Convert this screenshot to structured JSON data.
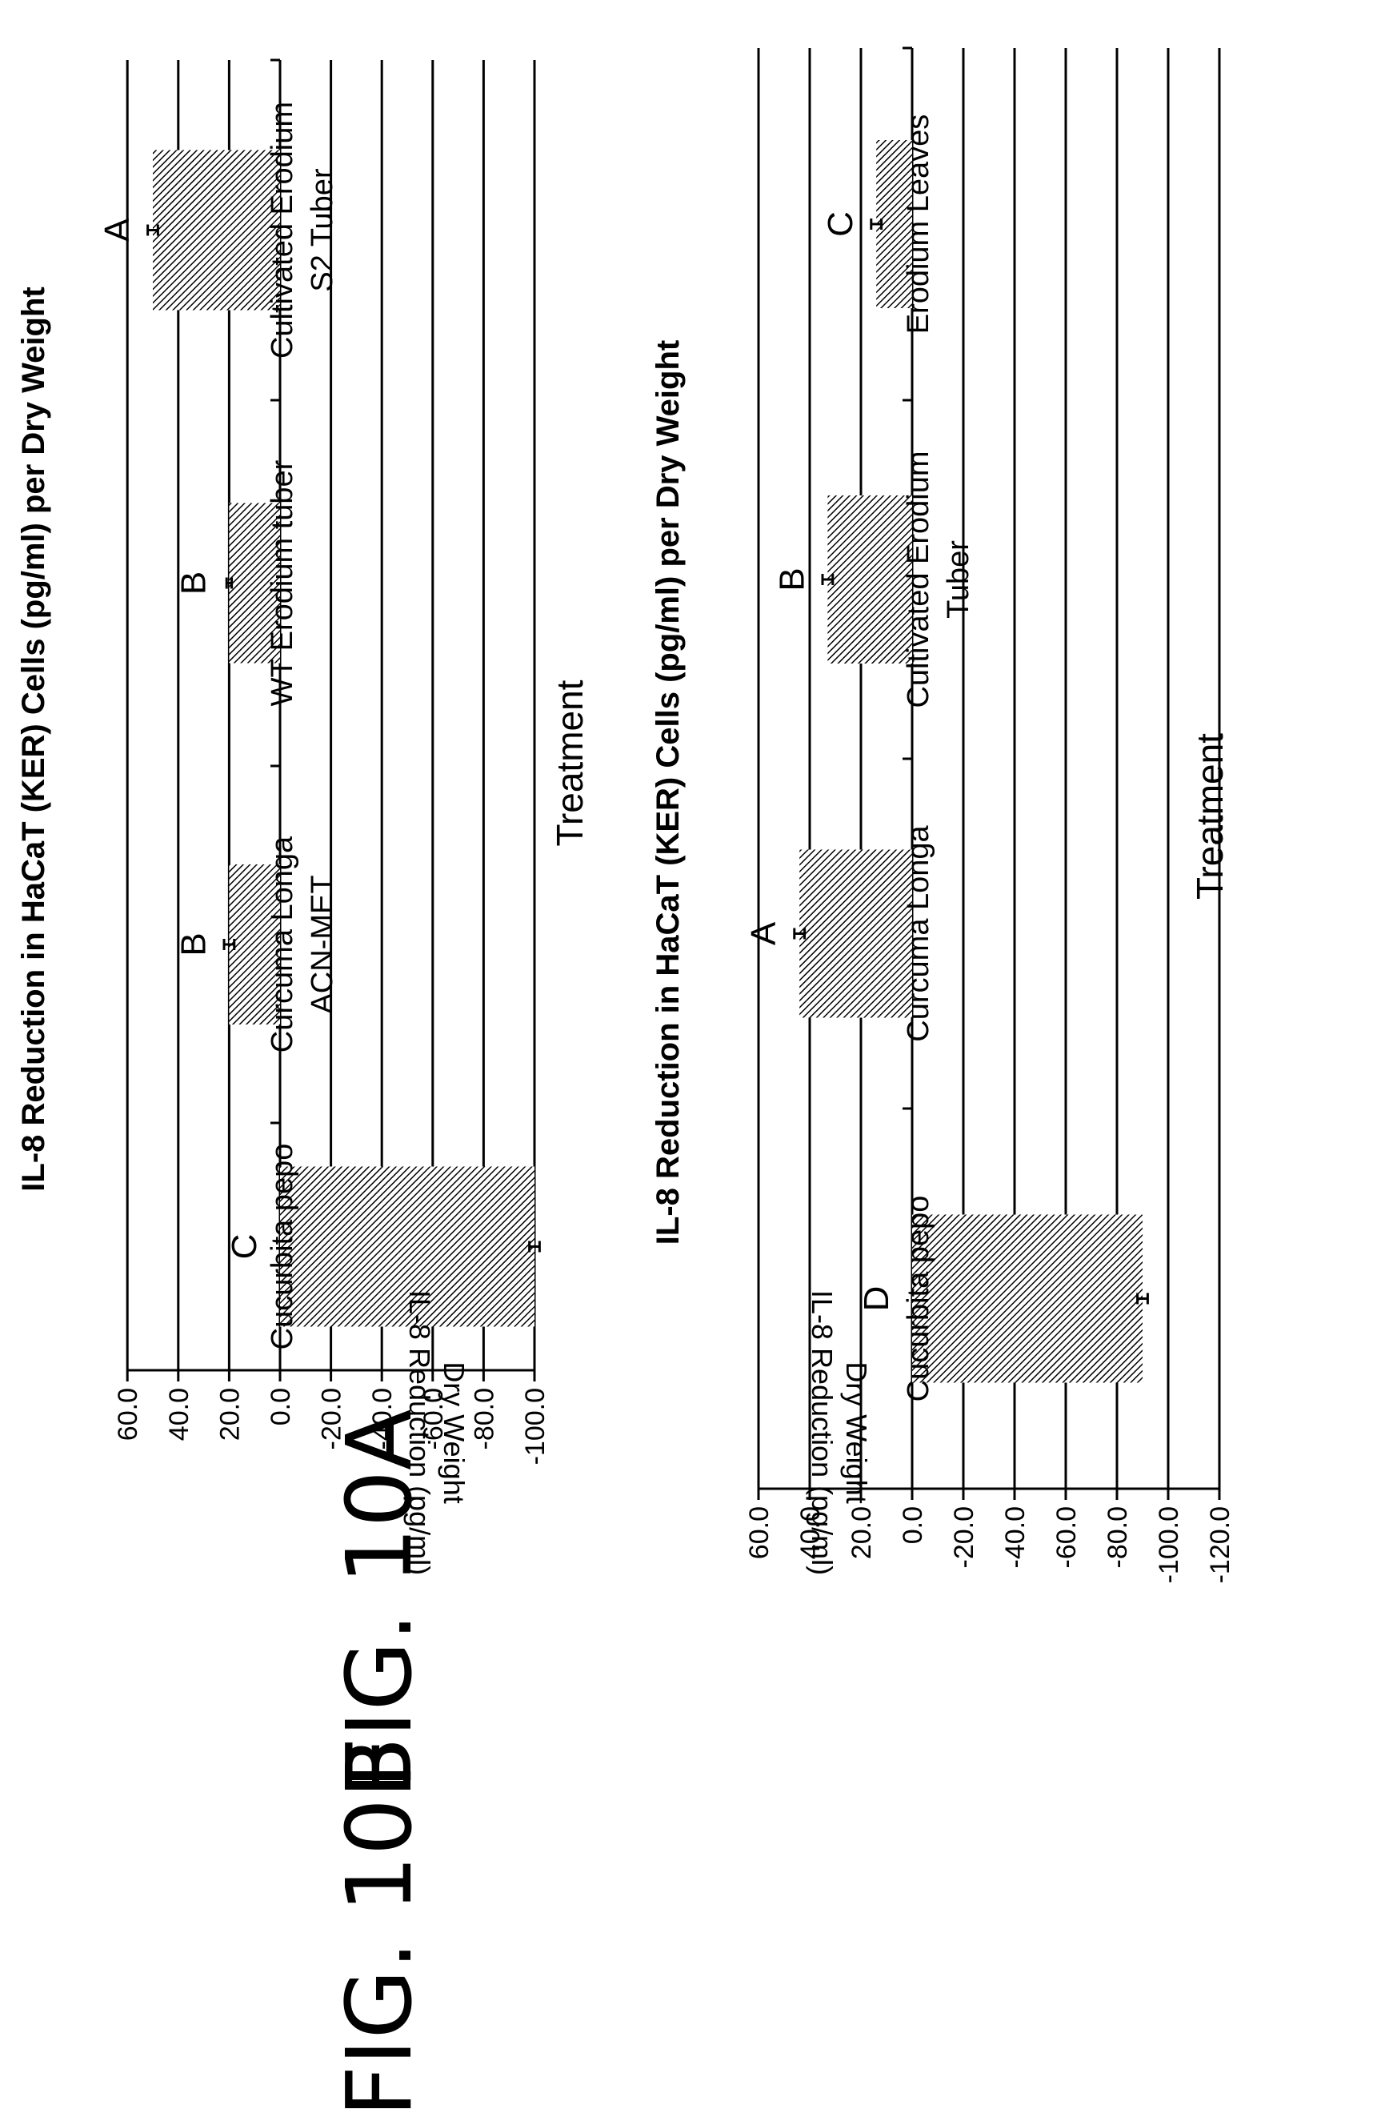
{
  "figures": [
    {
      "label": "FIG. 10A"
    },
    {
      "label": "FIG. 10B"
    }
  ],
  "colors": {
    "bar_fill": "hatched",
    "line": "#000000"
  },
  "chart_data": [
    {
      "type": "bar",
      "title": "IL-8 Reduction in HaCaT (KER) Cells (pg/ml) per Dry Weight",
      "xlabel": "Treatment",
      "ylabel_lines": [
        "IL-8 Reduction (pg/ml)",
        "Dry Weight"
      ],
      "ylim": [
        -100,
        60
      ],
      "yticks": [
        "60.0",
        "40.0",
        "20.0",
        "0.0",
        "-20.0",
        "-40.0",
        "-60.0",
        "-80.0",
        "-100.0"
      ],
      "categories": [
        [
          "Cucurbita pepo"
        ],
        [
          "Curcuma Longa",
          "ACN-MET"
        ],
        [
          "WT Erodium tuber"
        ],
        [
          "Cultivated Erodium",
          "S2 Tuber"
        ]
      ],
      "values": [
        -100,
        20,
        20,
        50
      ],
      "errors": [
        2,
        2,
        1,
        2
      ],
      "letters": [
        "C",
        "B",
        "B",
        "A"
      ],
      "grid": true,
      "orientation": "rotated-90"
    },
    {
      "type": "bar",
      "title": "IL-8 Reduction in HaCaT (KER) Cells (pg/ml) per Dry Weight",
      "xlabel": "Treatment",
      "ylabel_lines": [
        "IL-8 Reduction (pg/ml)",
        "Dry Weight"
      ],
      "ylim": [
        -120,
        60
      ],
      "yticks": [
        "60.0",
        "40.0",
        "20.0",
        "0.0",
        "-20.0",
        "-40.0",
        "-60.0",
        "-80.0",
        "-100.0",
        "-120.0"
      ],
      "categories": [
        [
          "Cucurbita pepo"
        ],
        [
          "Curcuma Longa"
        ],
        [
          "Cultivated Erodium",
          "Tuber"
        ],
        [
          "Erodium Leaves"
        ]
      ],
      "values": [
        -90,
        44,
        33,
        14
      ],
      "errors": [
        2,
        2,
        2,
        2
      ],
      "letters": [
        "D",
        "A",
        "B",
        "C"
      ],
      "grid": true,
      "orientation": "rotated-90"
    }
  ]
}
